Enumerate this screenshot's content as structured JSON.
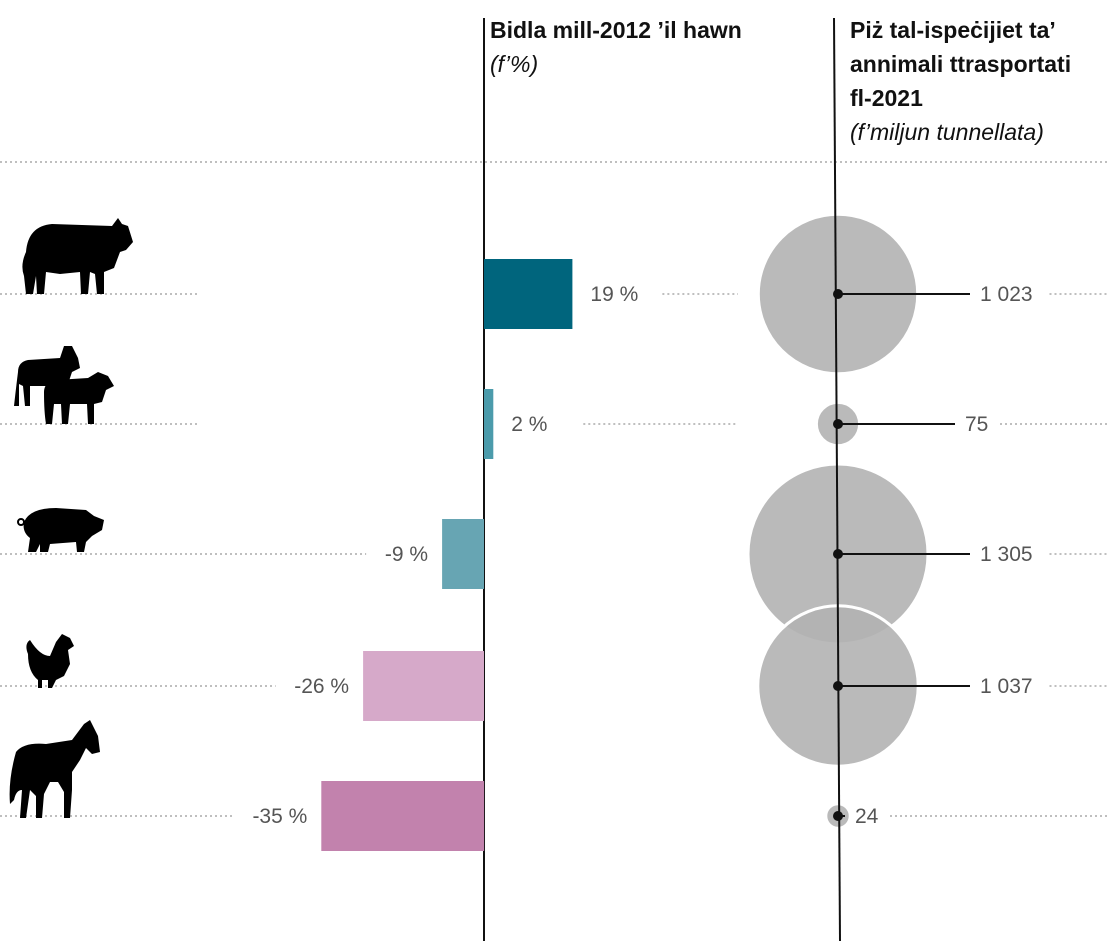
{
  "chart_data": [
    {
      "type": "bar",
      "title": "Bidla mill-2012 ’il hawn",
      "subtitle": "(f’%)",
      "categories": [
        "cattle",
        "sheep-goats",
        "pigs",
        "poultry",
        "horses"
      ],
      "values": [
        19,
        2,
        -9,
        -26,
        -35
      ],
      "value_labels": [
        "19 %",
        "2 %",
        "-9 %",
        "-26 %",
        "-35 %"
      ],
      "colors": [
        "#00657d",
        "#4b9bab",
        "#67a5b3",
        "#d6a9c9",
        "#c282ad"
      ],
      "xlim": [
        -35,
        19
      ]
    },
    {
      "type": "scatter",
      "title": "Piż tal-ispeċijiet ta’ annimali ttrasportati fl-2021",
      "subtitle": "(f’miljun tunnellata)",
      "categories": [
        "cattle",
        "sheep-goats",
        "pigs",
        "poultry",
        "horses"
      ],
      "values": [
        1023,
        75,
        1305,
        1037,
        24
      ],
      "value_labels": [
        "1 023",
        "75",
        "1 305",
        "1 037",
        "24"
      ],
      "bubble_color": "#b3b3b3"
    }
  ],
  "icons": [
    "cow-icon",
    "sheep-goat-icon",
    "pig-icon",
    "chicken-icon",
    "horse-icon"
  ]
}
